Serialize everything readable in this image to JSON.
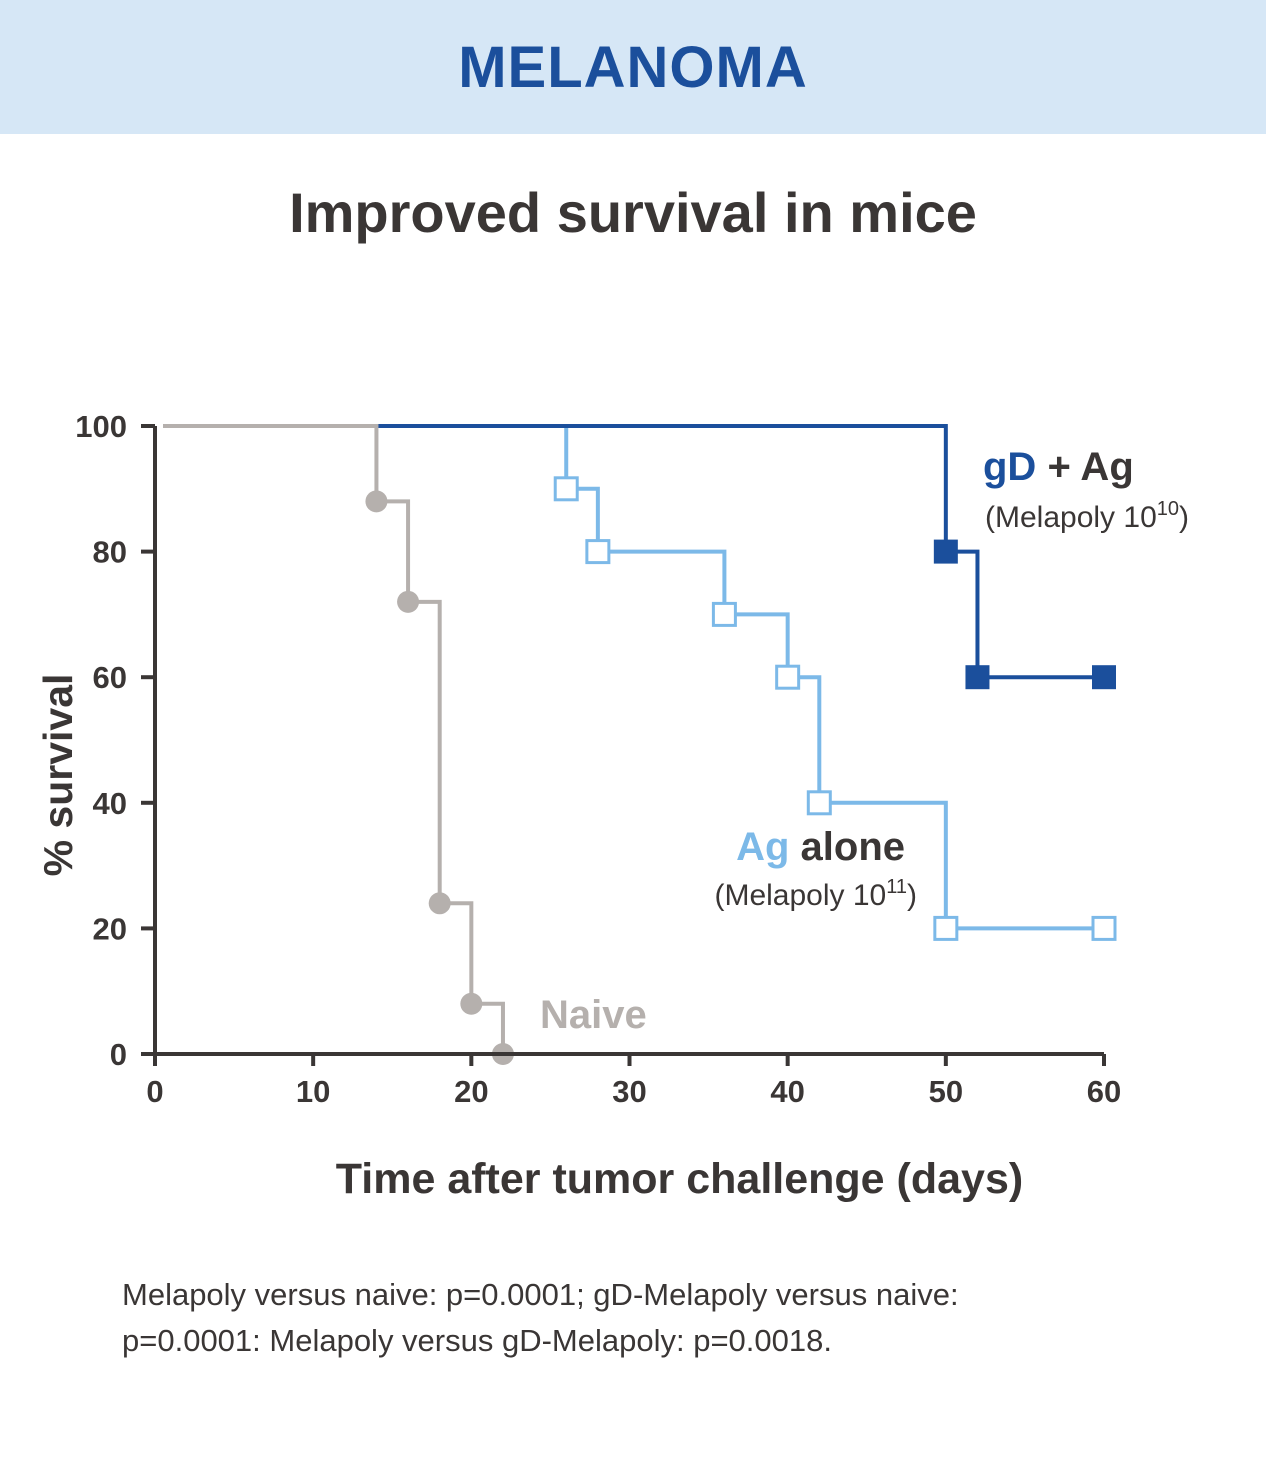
{
  "banner": {
    "title": "MELANOMA"
  },
  "colors": {
    "banner_bg": "#d6e7f6",
    "banner_text": "#1b4f9c",
    "axis": "#3a3635",
    "gd_ag": "#1b4f9c",
    "ag_alone": "#7cb9e8",
    "naive": "#b5b0ad"
  },
  "chart_data": {
    "type": "line",
    "subtype": "kaplan-meier step",
    "title": "Improved survival in mice",
    "xlabel": "Time after tumor challenge (days)",
    "ylabel": "% survival",
    "xlim": [
      0,
      60
    ],
    "ylim": [
      0,
      100
    ],
    "xticks": [
      0,
      10,
      20,
      30,
      40,
      50,
      60
    ],
    "yticks": [
      0,
      20,
      40,
      60,
      80,
      100
    ],
    "grid": false,
    "series": [
      {
        "name": "gD + Ag",
        "label_main": "gD",
        "label_rest": " + Ag",
        "label_sub": "(Melapoly 10",
        "label_sup": "10",
        "label_close": ")",
        "color": "#1b4f9c",
        "marker": "filled-square",
        "x": [
          0,
          50,
          52,
          60
        ],
        "y": [
          100,
          80,
          60,
          60
        ],
        "marker_x": [
          50,
          52,
          60
        ],
        "marker_y": [
          80,
          60,
          60
        ]
      },
      {
        "name": "Ag alone",
        "label_main": "Ag",
        "label_rest": " alone",
        "label_sub": "(Melapoly 10",
        "label_sup": "11",
        "label_close": ")",
        "color": "#7cb9e8",
        "marker": "open-square",
        "x": [
          0,
          26,
          28,
          36,
          40,
          42,
          50,
          60
        ],
        "y": [
          100,
          90,
          80,
          70,
          60,
          40,
          20,
          20
        ],
        "marker_x": [
          26,
          28,
          36,
          40,
          42,
          50,
          60
        ],
        "marker_y": [
          90,
          80,
          70,
          60,
          40,
          20,
          20
        ]
      },
      {
        "name": "Naive",
        "label_main": "Naive",
        "color": "#b5b0ad",
        "marker": "filled-circle",
        "x": [
          0,
          14,
          16,
          18,
          20,
          22
        ],
        "y": [
          100,
          88,
          72,
          24,
          8,
          0
        ],
        "marker_x": [
          14,
          16,
          18,
          20,
          22
        ],
        "marker_y": [
          88,
          72,
          24,
          8,
          0
        ]
      }
    ]
  },
  "footnote": {
    "line1": "Melapoly versus naive: p=0.0001; gD-Melapoly versus naive:",
    "line2": "p=0.0001: Melapoly versus gD-Melapoly: p=0.0018."
  }
}
